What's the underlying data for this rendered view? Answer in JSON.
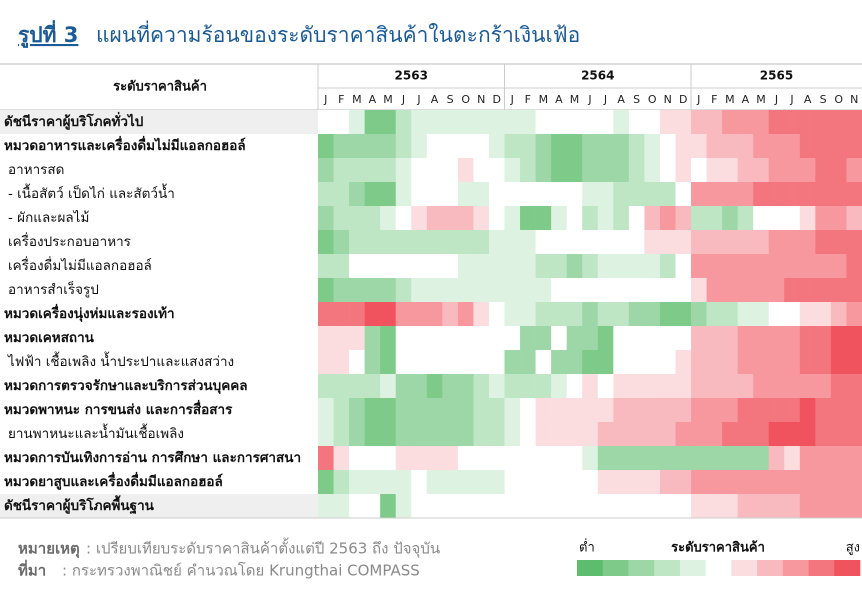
{
  "chart_data": {
    "type": "heatmap",
    "figure_label": "รูปที่ 3",
    "title": "แผนที่ความร้อนของระดับราคาสินค้าในตะกร้าเงินเฟ้อ",
    "row_header": "ระดับราคาสินค้า",
    "years": [
      {
        "label": "2563",
        "months": [
          "J",
          "F",
          "M",
          "A",
          "M",
          "J",
          "J",
          "A",
          "S",
          "O",
          "N",
          "D"
        ]
      },
      {
        "label": "2564",
        "months": [
          "J",
          "F",
          "M",
          "A",
          "M",
          "J",
          "J",
          "A",
          "S",
          "O",
          "N",
          "D"
        ]
      },
      {
        "label": "2565",
        "months": [
          "J",
          "F",
          "M",
          "A",
          "M",
          "J",
          "J",
          "A",
          "S",
          "O",
          "N"
        ]
      }
    ],
    "clim": [
      -5,
      5
    ],
    "low_color": "#5cbd6c",
    "mid_color": "#ffffff",
    "high_color": "#f0535e",
    "series": [
      {
        "name": "ดัชนีราคาผู้บริโภคทั่วไป",
        "bold": true,
        "highlight": true,
        "values": [
          0,
          0,
          -1,
          -4,
          -4,
          -2,
          -1,
          -1,
          -1,
          -1,
          -1,
          -1,
          -1,
          -1,
          0,
          0,
          0,
          0,
          0,
          -1,
          0,
          0,
          1,
          1,
          2,
          2,
          3,
          3,
          3,
          4,
          4,
          4,
          4,
          4,
          4
        ]
      },
      {
        "name": "หมวดอาหารและเครื่องดื่มไม่มีแอลกอฮอล์",
        "bold": true,
        "highlight": false,
        "values": [
          -4,
          -3,
          -3,
          -3,
          -3,
          -2,
          -1,
          0,
          0,
          0,
          0,
          -1,
          -2,
          -2,
          -3,
          -4,
          -4,
          -3,
          -3,
          -3,
          -2,
          -1,
          0,
          1,
          1,
          2,
          2,
          2,
          3,
          3,
          3,
          4,
          4,
          4,
          4
        ]
      },
      {
        "name": "อาหารสด",
        "bold": false,
        "highlight": false,
        "values": [
          -3,
          -2,
          -2,
          -2,
          -2,
          -1,
          0,
          0,
          0,
          1,
          0,
          0,
          -1,
          -2,
          -3,
          -4,
          -4,
          -3,
          -3,
          -3,
          -2,
          -1,
          0,
          1,
          0,
          1,
          1,
          2,
          2,
          3,
          3,
          3,
          4,
          4,
          3
        ]
      },
      {
        "name": "- เนื้อสัตว์ เป็ดไก่ และสัตว์น้ำ",
        "bold": false,
        "highlight": false,
        "values": [
          -2,
          -2,
          -3,
          -4,
          -4,
          -1,
          0,
          0,
          0,
          -1,
          -1,
          0,
          0,
          0,
          0,
          0,
          0,
          -1,
          -1,
          -2,
          -2,
          -2,
          -2,
          0,
          3,
          3,
          3,
          3,
          4,
          4,
          4,
          4,
          4,
          4,
          4
        ]
      },
      {
        "name": "- ผักและผลไม้",
        "bold": false,
        "highlight": false,
        "values": [
          -3,
          -2,
          -2,
          -2,
          -1,
          0,
          1,
          2,
          2,
          2,
          1,
          0,
          -1,
          -4,
          -4,
          -1,
          0,
          -2,
          -1,
          -2,
          0,
          2,
          3,
          2,
          -2,
          -2,
          -3,
          -2,
          0,
          0,
          0,
          1,
          3,
          3,
          2
        ]
      },
      {
        "name": "เครื่องประกอบอาหาร",
        "bold": false,
        "highlight": false,
        "values": [
          -4,
          -3,
          -2,
          -2,
          -2,
          -2,
          -2,
          -2,
          -2,
          -2,
          -2,
          -1,
          -1,
          -1,
          0,
          0,
          0,
          0,
          0,
          0,
          0,
          1,
          1,
          1,
          2,
          2,
          2,
          2,
          2,
          3,
          3,
          3,
          4,
          4,
          4
        ]
      },
      {
        "name": "เครื่องดื่มไม่มีแอลกอฮอล์",
        "bold": false,
        "highlight": false,
        "values": [
          -2,
          -2,
          0,
          0,
          0,
          0,
          0,
          0,
          0,
          -1,
          -1,
          -1,
          -1,
          -1,
          -2,
          -2,
          -3,
          -2,
          -1,
          -1,
          -1,
          -1,
          -2,
          0,
          3,
          3,
          3,
          3,
          3,
          3,
          3,
          3,
          3,
          3,
          4
        ]
      },
      {
        "name": "อาหารสำเร็จรูป",
        "bold": false,
        "highlight": false,
        "values": [
          -4,
          -3,
          -3,
          -3,
          -3,
          -2,
          -1,
          -1,
          -1,
          -1,
          -1,
          -1,
          -1,
          -1,
          -1,
          0,
          0,
          0,
          0,
          0,
          0,
          0,
          0,
          0,
          1,
          3,
          3,
          3,
          3,
          3,
          4,
          4,
          4,
          4,
          4
        ]
      },
      {
        "name": "หมวดเครื่องนุ่งห่มและรองเท้า",
        "bold": true,
        "highlight": false,
        "values": [
          4,
          4,
          4,
          5,
          5,
          3,
          3,
          3,
          2,
          3,
          1,
          0,
          -1,
          -1,
          -2,
          -2,
          -2,
          -3,
          -2,
          -2,
          -3,
          -3,
          -4,
          -4,
          -3,
          -2,
          -2,
          -1,
          -1,
          0,
          0,
          1,
          1,
          2,
          3
        ]
      },
      {
        "name": "หมวดเคหสถาน",
        "bold": true,
        "highlight": false,
        "values": [
          1,
          1,
          1,
          -3,
          -4,
          0,
          0,
          0,
          0,
          0,
          0,
          0,
          0,
          -3,
          -3,
          0,
          -3,
          -3,
          -4,
          0,
          0,
          0,
          0,
          0,
          2,
          2,
          2,
          3,
          3,
          3,
          3,
          4,
          4,
          5,
          5
        ]
      },
      {
        "name": "ไฟฟ้า เชื้อเพลิง น้ำประปาและแสงสว่าง",
        "bold": false,
        "highlight": false,
        "values": [
          1,
          1,
          0,
          -3,
          -4,
          0,
          0,
          0,
          0,
          0,
          0,
          0,
          -3,
          -3,
          0,
          -3,
          -3,
          -4,
          -4,
          0,
          0,
          0,
          0,
          1,
          2,
          2,
          2,
          3,
          3,
          3,
          3,
          4,
          4,
          5,
          5
        ]
      },
      {
        "name": "หมวดการตรวจรักษาและบริการส่วนบุคคล",
        "bold": true,
        "highlight": false,
        "values": [
          -2,
          -2,
          -2,
          -2,
          -1,
          -3,
          -3,
          -4,
          -3,
          -3,
          -2,
          -1,
          -2,
          -2,
          -2,
          -1,
          0,
          1,
          0,
          1,
          1,
          1,
          1,
          1,
          2,
          2,
          2,
          2,
          3,
          3,
          3,
          3,
          3,
          4,
          4
        ]
      },
      {
        "name": "หมวดพาหนะ การขนส่ง และการสื่อสาร",
        "bold": true,
        "highlight": false,
        "values": [
          -1,
          -2,
          -3,
          -4,
          -4,
          -3,
          -3,
          -3,
          -3,
          -3,
          -2,
          -2,
          -1,
          0,
          1,
          1,
          1,
          1,
          1,
          2,
          2,
          2,
          2,
          2,
          3,
          3,
          3,
          4,
          4,
          4,
          4,
          5,
          4,
          4,
          4
        ]
      },
      {
        "name": "ยานพาหนะและน้ำมันเชื้อเพลิง",
        "bold": false,
        "highlight": false,
        "values": [
          -1,
          -2,
          -3,
          -4,
          -4,
          -3,
          -3,
          -3,
          -3,
          -3,
          -2,
          -2,
          -1,
          0,
          1,
          1,
          1,
          1,
          2,
          2,
          2,
          2,
          2,
          3,
          3,
          3,
          4,
          4,
          4,
          5,
          5,
          5,
          4,
          4,
          4
        ]
      },
      {
        "name": "หมวดการบันเทิงการอ่าน การศึกษา และการศาสนา",
        "bold": true,
        "highlight": false,
        "values": [
          4,
          1,
          0,
          0,
          0,
          1,
          1,
          1,
          1,
          0,
          0,
          0,
          0,
          0,
          0,
          0,
          0,
          -1,
          -3,
          -3,
          -3,
          -3,
          -3,
          -3,
          -3,
          -3,
          -3,
          -3,
          -3,
          2,
          1,
          3,
          3,
          3,
          3
        ]
      },
      {
        "name": "หมวดยาสูบและเครื่องดื่มมีแอลกอฮอล์",
        "bold": true,
        "highlight": false,
        "values": [
          -4,
          -2,
          -1,
          -1,
          -1,
          -1,
          0,
          -1,
          -1,
          -1,
          -1,
          -1,
          0,
          0,
          0,
          0,
          0,
          0,
          1,
          1,
          1,
          1,
          2,
          2,
          3,
          3,
          3,
          3,
          3,
          3,
          3,
          3,
          3,
          3,
          3
        ]
      },
      {
        "name": "ดัชนีราคาผู้บริโภคพื้นฐาน",
        "bold": true,
        "highlight": true,
        "values": [
          -1,
          -1,
          0,
          0,
          -4,
          -1,
          0,
          0,
          0,
          0,
          0,
          0,
          0,
          0,
          0,
          0,
          0,
          0,
          0,
          0,
          0,
          0,
          0,
          0,
          1,
          1,
          1,
          2,
          2,
          2,
          2,
          3,
          3,
          3,
          3
        ]
      }
    ],
    "note_label": "หมายเหตุ",
    "note": ": เปรียบเทียบระดับราคาสินค้าตั้งแต่ปี 2563 ถึง ปัจจุบัน",
    "source_label": "ที่มา",
    "source": ": กระทรวงพาณิชย์ คำนวณโดย Krungthai COMPASS",
    "legend_title": "ระดับราคาสินค้า",
    "legend_low": "ต่ำ",
    "legend_high": "สูง"
  }
}
